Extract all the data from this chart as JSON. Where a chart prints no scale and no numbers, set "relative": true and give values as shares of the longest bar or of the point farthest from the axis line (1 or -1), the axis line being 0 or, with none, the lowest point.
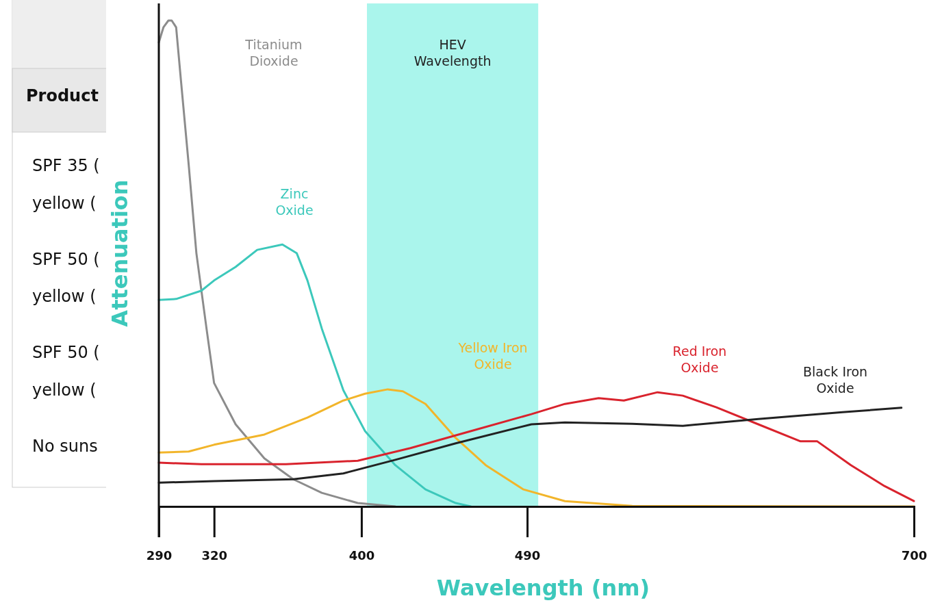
{
  "chart_data": {
    "type": "line",
    "relative": true,
    "xlabel": "Wavelength (nm)",
    "ylabel": "Attenuation",
    "xlim": [
      290,
      700
    ],
    "xticks": [
      290,
      320,
      400,
      490,
      700
    ],
    "legend": false,
    "grid": false,
    "marker": "none",
    "bands": [
      {
        "axis": "x",
        "from": 403,
        "to": 496,
        "label": "HEV Wavelength",
        "color": "#aaf5ec"
      }
    ],
    "annotations": [
      "Product",
      "SPF 35 (",
      "yellow (",
      "SPF 50 (",
      "yellow (",
      "SPF 50 (",
      "yellow (",
      "No suns"
    ],
    "series": [
      {
        "name": "Titanium Dioxide",
        "color": "#8c8c8c",
        "x": [
          290,
          292.5,
          295.2,
          297,
          299.4,
          302.1,
          306.2,
          310.4,
          315.9,
          320,
          331.7,
          347.3,
          363,
          378.5,
          398,
          418.4
        ],
        "values": [
          0.955,
          0.986,
          1.0,
          1.0,
          0.986,
          0.873,
          0.704,
          0.521,
          0.366,
          0.254,
          0.169,
          0.099,
          0.056,
          0.028,
          0.007,
          0
        ]
      },
      {
        "name": "Zinc Oxide",
        "color": "#3cc8bb",
        "x": [
          290,
          299.4,
          313.1,
          320,
          331.7,
          343.4,
          357.1,
          364.9,
          370.7,
          378.5,
          390.2,
          402,
          418.4,
          434.8,
          451.2,
          459.4
        ],
        "values": [
          0.425,
          0.427,
          0.444,
          0.465,
          0.493,
          0.528,
          0.539,
          0.521,
          0.465,
          0.366,
          0.239,
          0.155,
          0.085,
          0.035,
          0.007,
          0
        ]
      },
      {
        "name": "Yellow Iron Oxide",
        "color": "#f2b52a",
        "x": [
          290,
          306.2,
          320,
          347.3,
          370.7,
          390.2,
          402,
          414.3,
          422.5,
          434.8,
          451.2,
          467.5,
          488,
          510.5,
          547.1,
          700
        ],
        "values": [
          0.111,
          0.113,
          0.127,
          0.148,
          0.183,
          0.218,
          0.232,
          0.241,
          0.237,
          0.211,
          0.141,
          0.085,
          0.035,
          0.011,
          0.001,
          0
        ]
      },
      {
        "name": "Red Iron Oxide",
        "color": "#d9232d",
        "x": [
          290,
          313.1,
          359,
          398,
          426.6,
          459.3,
          492.3,
          510.5,
          528.8,
          542.5,
          560.8,
          574.5,
          592.7,
          615.5,
          638.4,
          647.5,
          665.8,
          684,
          700
        ],
        "values": [
          0.09,
          0.087,
          0.087,
          0.094,
          0.12,
          0.155,
          0.19,
          0.211,
          0.223,
          0.218,
          0.235,
          0.228,
          0.204,
          0.169,
          0.134,
          0.134,
          0.085,
          0.042,
          0.011
        ]
      },
      {
        "name": "Black Iron Oxide",
        "color": "#222222",
        "x": [
          290,
          320,
          363,
          390.2,
          418.4,
          451.2,
          492.3,
          510.5,
          547.1,
          574.5,
          615.5,
          661.2,
          693.2
        ],
        "values": [
          0.049,
          0.052,
          0.056,
          0.068,
          0.096,
          0.13,
          0.169,
          0.173,
          0.17,
          0.166,
          0.18,
          0.194,
          0.203
        ]
      }
    ]
  }
}
